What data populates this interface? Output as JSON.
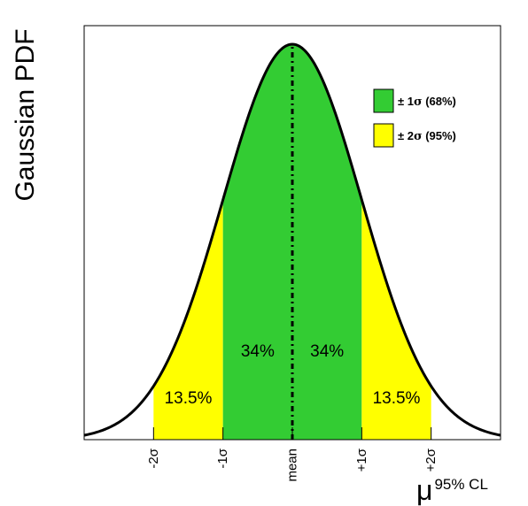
{
  "chart_data": {
    "type": "area",
    "title": "",
    "ylabel": "Gaussian PDF",
    "xlabel_main": "μ",
    "xlabel_superscript": "95% CL",
    "xlim": [
      -3.0,
      3.0
    ],
    "ylim": [
      0,
      1.0
    ],
    "curve": {
      "mean": 0,
      "sigma": 1
    },
    "xticks": [
      {
        "x": -2,
        "label": "-2σ"
      },
      {
        "x": -1,
        "label": "-1σ"
      },
      {
        "x": 0,
        "label": "mean"
      },
      {
        "x": 1,
        "label": "+1σ"
      },
      {
        "x": 2,
        "label": "+2σ"
      }
    ],
    "bands": [
      {
        "from": -2,
        "to": -1,
        "color": "#ffff00",
        "label": "13.5%"
      },
      {
        "from": -1,
        "to": 0,
        "color": "#33cc33",
        "label": "34%"
      },
      {
        "from": 0,
        "to": 1,
        "color": "#33cc33",
        "label": "34%"
      },
      {
        "from": 1,
        "to": 2,
        "color": "#ffff00",
        "label": "13.5%"
      }
    ],
    "legend": {
      "placement": "top-right",
      "entries": [
        {
          "prefix": "± 1",
          "sym": "σ",
          "suffix": " (68%)",
          "color": "#33cc33"
        },
        {
          "prefix": "± 2",
          "sym": "σ",
          "suffix": " (95%)",
          "color": "#ffff00"
        }
      ]
    },
    "colors": {
      "curve": "#000000",
      "frame": "#000000",
      "mean_line": "#000000"
    }
  }
}
